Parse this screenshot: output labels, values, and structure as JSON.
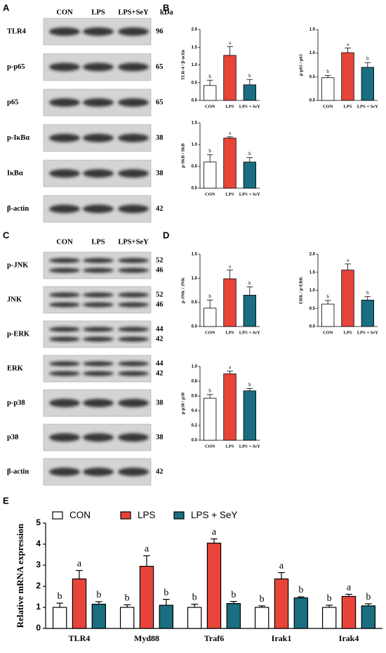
{
  "panel_labels": [
    "A",
    "B",
    "C",
    "D",
    "E"
  ],
  "blots": [
    {
      "lanes": [
        "CON",
        "LPS",
        "LPS+SeY"
      ],
      "unit": "kDa",
      "rows": [
        {
          "name": "TLR4",
          "kda": [
            "96"
          ]
        },
        {
          "name": "p-p65",
          "kda": [
            "65"
          ]
        },
        {
          "name": "p65",
          "kda": [
            "65"
          ]
        },
        {
          "name": "p-IκBα",
          "kda": [
            "38"
          ]
        },
        {
          "name": "IκBα",
          "kda": [
            "38"
          ]
        },
        {
          "name": "β-actin",
          "kda": [
            "42"
          ]
        }
      ]
    },
    {
      "lanes": [
        "CON",
        "LPS",
        "LPS+SeY"
      ],
      "rows": [
        {
          "name": "p-JNK",
          "kda": [
            "52",
            "46"
          ]
        },
        {
          "name": "JNK",
          "kda": [
            "52",
            "46"
          ]
        },
        {
          "name": "p-ERK",
          "kda": [
            "44",
            "42"
          ]
        },
        {
          "name": "ERK",
          "kda": [
            "44",
            "42"
          ]
        },
        {
          "name": "p-p38",
          "kda": [
            "38"
          ]
        },
        {
          "name": "p38",
          "kda": [
            "38"
          ]
        },
        {
          "name": "β-actin",
          "kda": [
            "42"
          ]
        }
      ]
    }
  ],
  "chart_data": [
    {
      "type": "bar",
      "ylabel": "TLR-4 / β-actin",
      "categories": [
        "CON",
        "LPS",
        "LPS + SeY"
      ],
      "colors": [
        "#ffffff",
        "#e8443a",
        "#1a6e80"
      ],
      "values": [
        0.42,
        1.27,
        0.44
      ],
      "errors": [
        0.15,
        0.25,
        0.15
      ],
      "letters": [
        "b",
        "a",
        "b"
      ],
      "ylim": [
        0,
        2
      ],
      "yticks": [
        {
          "value": 0,
          "label": "0.0"
        },
        {
          "value": 0.5,
          "label": "0.5"
        },
        {
          "value": 1,
          "label": "1.0"
        },
        {
          "value": 1.5,
          "label": "1.5"
        },
        {
          "value": 2,
          "label": "2.0"
        }
      ]
    },
    {
      "type": "bar",
      "ylabel": "p-p65 / p65",
      "categories": [
        "CON",
        "LPS",
        "LPS + SeY"
      ],
      "colors": [
        "#ffffff",
        "#e8443a",
        "#1a6e80"
      ],
      "values": [
        0.48,
        1.01,
        0.7
      ],
      "errors": [
        0.05,
        0.1,
        0.1
      ],
      "letters": [
        "b",
        "a",
        "b"
      ],
      "ylim": [
        0,
        1.5
      ],
      "yticks": [
        {
          "value": 0,
          "label": "0.0"
        },
        {
          "value": 0.5,
          "label": "0.5"
        },
        {
          "value": 1,
          "label": "1.0"
        },
        {
          "value": 1.5,
          "label": "1.5"
        }
      ]
    },
    {
      "type": "bar",
      "ylabel": "p-IKB / IKB",
      "categories": [
        "CON",
        "LPS",
        "LPS + SeY"
      ],
      "colors": [
        "#ffffff",
        "#e8443a",
        "#1a6e80"
      ],
      "values": [
        0.6,
        1.15,
        0.6
      ],
      "errors": [
        0.17,
        0.03,
        0.1
      ],
      "letters": [
        "b",
        "a",
        "b"
      ],
      "ylim": [
        0,
        1.5
      ],
      "yticks": [
        {
          "value": 0,
          "label": "0.0"
        },
        {
          "value": 0.5,
          "label": "0.5"
        },
        {
          "value": 1,
          "label": "1.0"
        },
        {
          "value": 1.5,
          "label": "1.5"
        }
      ]
    },
    {
      "type": "bar",
      "ylabel": "p-JNK / JNK",
      "categories": [
        "CON",
        "LPS",
        "LPS + SeY"
      ],
      "colors": [
        "#ffffff",
        "#e8443a",
        "#1a6e80"
      ],
      "values": [
        0.38,
        0.99,
        0.65
      ],
      "errors": [
        0.17,
        0.18,
        0.17
      ],
      "letters": [
        "b",
        "a",
        "b"
      ],
      "ylim": [
        0,
        1.5
      ],
      "yticks": [
        {
          "value": 0,
          "label": "0.0"
        },
        {
          "value": 0.5,
          "label": "0.5"
        },
        {
          "value": 1,
          "label": "1.0"
        },
        {
          "value": 1.5,
          "label": "1.5"
        }
      ]
    },
    {
      "type": "bar",
      "ylabel": "ERK / p-ERK",
      "categories": [
        "CON",
        "LPS",
        "LPS + SeY"
      ],
      "colors": [
        "#ffffff",
        "#e8443a",
        "#1a6e80"
      ],
      "values": [
        0.62,
        1.56,
        0.73
      ],
      "errors": [
        0.1,
        0.17,
        0.1
      ],
      "letters": [
        "b",
        "a",
        "b"
      ],
      "ylim": [
        0,
        2
      ],
      "yticks": [
        {
          "value": 0,
          "label": "0.0"
        },
        {
          "value": 0.5,
          "label": "0.5"
        },
        {
          "value": 1,
          "label": "1.0"
        },
        {
          "value": 1.5,
          "label": "1.5"
        },
        {
          "value": 2,
          "label": "2.0"
        }
      ]
    },
    {
      "type": "bar",
      "ylabel": "p-p38 / p38",
      "categories": [
        "CON",
        "LPS",
        "LPS + SeY"
      ],
      "colors": [
        "#ffffff",
        "#e8443a",
        "#1a6e80"
      ],
      "values": [
        0.57,
        0.9,
        0.67
      ],
      "errors": [
        0.05,
        0.04,
        0.03
      ],
      "letters": [
        "b",
        "a",
        "b"
      ],
      "ylim": [
        0,
        1
      ],
      "yticks": [
        {
          "value": 0,
          "label": "0.0"
        },
        0.2,
        0.4,
        0.6,
        0.8,
        {
          "value": 1,
          "label": "1.0"
        }
      ]
    },
    {
      "type": "grouped_bar",
      "ylabel": "Relative mRNA expression",
      "categories": [
        "TLR4",
        "Myd88",
        "Traf6",
        "Irak1",
        "Irak4"
      ],
      "series": [
        {
          "name": "CON",
          "color": "#ffffff",
          "values": [
            1,
            1,
            1,
            1,
            1
          ],
          "errors": [
            0.2,
            0.12,
            0.15,
            0.07,
            0.1
          ],
          "letters": [
            "b",
            "b",
            "b",
            "b",
            "b"
          ]
        },
        {
          "name": "LPS",
          "color": "#e8443a",
          "values": [
            2.35,
            2.95,
            4.05,
            2.35,
            1.52
          ],
          "errors": [
            0.4,
            0.5,
            0.2,
            0.3,
            0.1
          ],
          "letters": [
            "a",
            "a",
            "a",
            "a",
            "a"
          ]
        },
        {
          "name": "LPS + SeY",
          "color": "#1a6e80",
          "values": [
            1.15,
            1.1,
            1.18,
            1.45,
            1.07
          ],
          "errors": [
            0.12,
            0.28,
            0.1,
            0.05,
            0.1
          ],
          "letters": [
            "b",
            "b",
            "b",
            "b",
            "b"
          ]
        }
      ],
      "ylim": [
        0,
        5
      ],
      "yticks": [
        0,
        1,
        2,
        3,
        4,
        5
      ]
    }
  ]
}
